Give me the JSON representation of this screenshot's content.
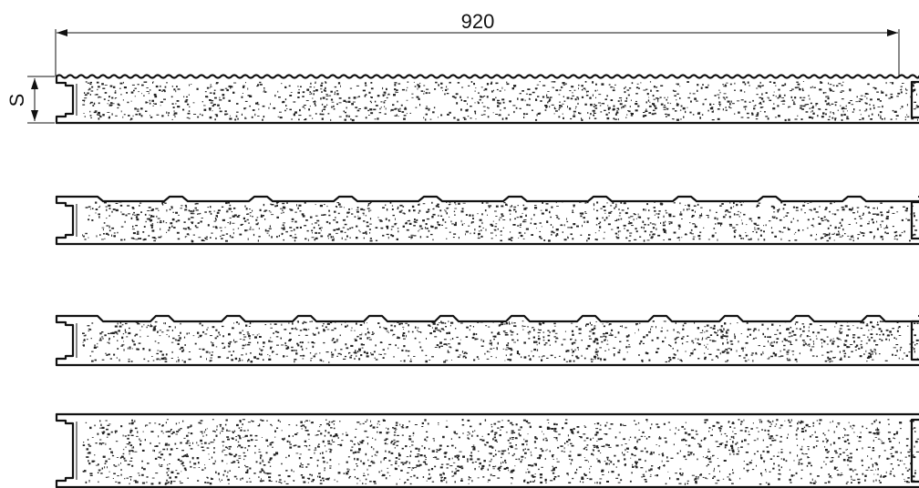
{
  "dimensions": {
    "width_label": "920",
    "thickness_label": "S"
  },
  "panels": [
    {
      "profile": "micro-rib"
    },
    {
      "profile": "trapezoid-small"
    },
    {
      "profile": "trapezoid"
    },
    {
      "profile": "flat"
    }
  ],
  "colors": {
    "line": "#111111",
    "core_fill": "#ffffff",
    "speckle": "#222222"
  }
}
